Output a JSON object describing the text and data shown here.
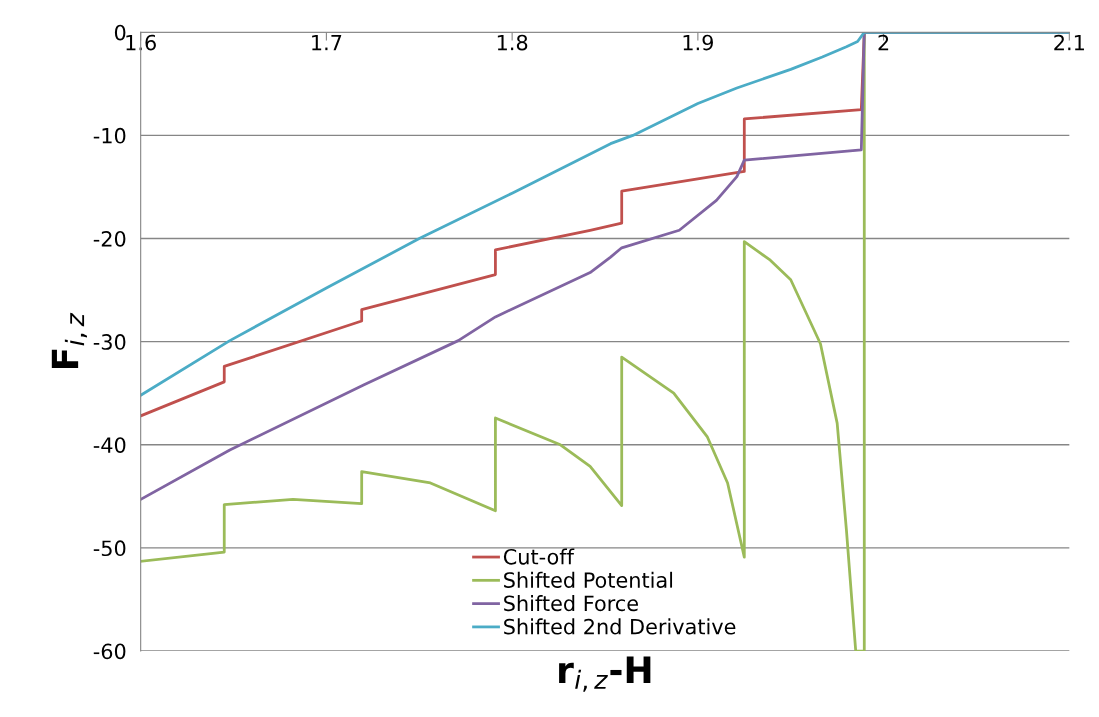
{
  "chart_data": {
    "type": "line",
    "xlabel": "r$_{i,z}$-H",
    "ylabel": "F$_{i,z}$",
    "xlim": [
      1.6,
      2.1
    ],
    "xticks": [
      1.6,
      1.7,
      1.8,
      1.9,
      2,
      2.1
    ],
    "ylim": [
      -60,
      0
    ],
    "yticks": [
      0,
      -10,
      -20,
      -30,
      -40,
      -50,
      -60
    ],
    "grid": "y",
    "legend": "bottom",
    "line_style": "solid",
    "marker": "none",
    "series": [
      {
        "name": "Cut-off",
        "color": "#c0504d",
        "x": [
          1.6,
          1.645,
          1.645,
          1.719,
          1.719,
          1.791,
          1.791,
          1.842,
          1.859,
          1.859,
          1.925,
          1.925,
          1.988,
          1.9896,
          2.1
        ],
        "values": [
          -37.2,
          -33.9,
          -32.4,
          -28.0,
          -26.9,
          -23.5,
          -21.1,
          -19.2,
          -18.5,
          -15.4,
          -13.5,
          -8.4,
          -7.5,
          0,
          0
        ]
      },
      {
        "name": "Shifted Potential",
        "color": "#9bbb59",
        "x": [
          1.6,
          1.645,
          1.645,
          1.682,
          1.719,
          1.719,
          1.756,
          1.791,
          1.791,
          1.826,
          1.842,
          1.859,
          1.859,
          1.887,
          1.905,
          1.916,
          1.925,
          1.925,
          1.939,
          1.95,
          1.966,
          1.975,
          1.98,
          1.985,
          1.9896,
          1.9896,
          2.1
        ],
        "values": [
          -51.3,
          -50.4,
          -45.8,
          -45.3,
          -45.7,
          -42.6,
          -43.7,
          -46.4,
          -37.4,
          -40.0,
          -42.1,
          -45.9,
          -31.5,
          -35.0,
          -39.2,
          -43.7,
          -50.9,
          -20.3,
          -22.1,
          -24.0,
          -30.2,
          -37.9,
          -48.3,
          -60,
          -60,
          0,
          0
        ]
      },
      {
        "name": "Shifted Force",
        "color": "#8064a2",
        "x": [
          1.6,
          1.648,
          1.72,
          1.771,
          1.791,
          1.842,
          1.853,
          1.859,
          1.89,
          1.91,
          1.921,
          1.925,
          1.988,
          1.9896,
          2.1
        ],
        "values": [
          -45.3,
          -40.5,
          -34.2,
          -29.9,
          -27.6,
          -23.3,
          -21.8,
          -20.9,
          -19.2,
          -16.3,
          -14.0,
          -12.4,
          -11.4,
          0,
          0
        ]
      },
      {
        "name": "Shifted 2nd Derivative",
        "color": "#4bacc6",
        "x": [
          1.6,
          1.648,
          1.7,
          1.75,
          1.8,
          1.853,
          1.865,
          1.9,
          1.921,
          1.95,
          1.967,
          1.98,
          1.986,
          1.9896,
          2.1
        ],
        "values": [
          -35.2,
          -29.9,
          -24.8,
          -20.0,
          -15.6,
          -10.8,
          -10.0,
          -6.9,
          -5.4,
          -3.6,
          -2.4,
          -1.4,
          -0.9,
          0,
          0
        ]
      }
    ]
  }
}
